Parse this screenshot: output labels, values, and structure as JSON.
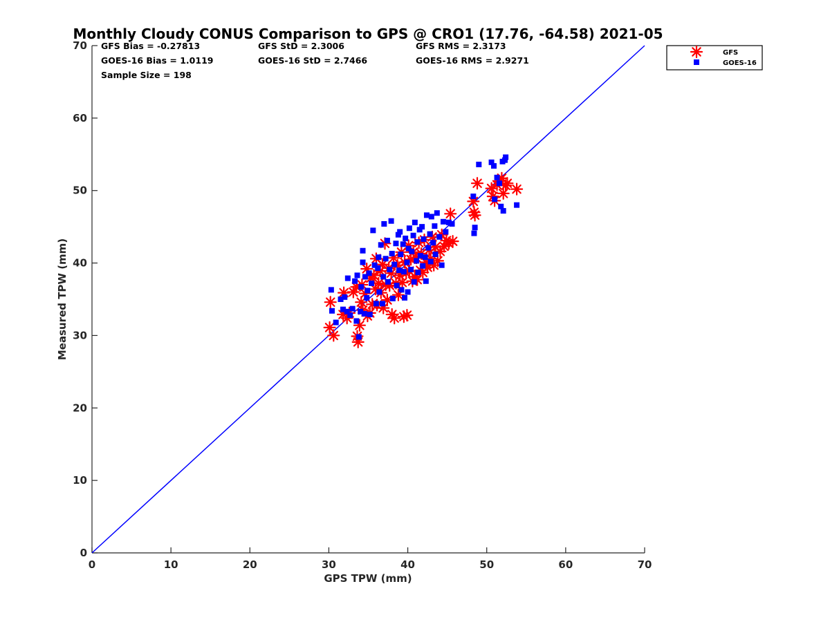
{
  "chart_data": {
    "type": "scatter",
    "title": "Monthly Cloudy CONUS Comparison to GPS @ CRO1 (17.76, -64.58) 2021-05",
    "xlabel": "GPS TPW (mm)",
    "ylabel": "Measured TPW (mm)",
    "xlim": [
      0,
      70
    ],
    "ylim": [
      0,
      70
    ],
    "xticks": [
      "0",
      "10",
      "20",
      "30",
      "40",
      "50",
      "60",
      "70"
    ],
    "yticks": [
      "0",
      "10",
      "20",
      "30",
      "40",
      "50",
      "60",
      "70"
    ],
    "grid": false,
    "legend_position": "top-right outside",
    "stats": {
      "gfs_bias": "GFS Bias = -0.27813",
      "gfs_std": "GFS StD = 2.3006",
      "gfs_rms": "GFS RMS = 2.3173",
      "goes_bias": "GOES-16 Bias = 1.0119",
      "goes_std": "GOES-16 StD = 2.7466",
      "goes_rms": "GOES-16 RMS = 2.9271",
      "sample_size": "Sample Size = 198"
    },
    "reference_line": {
      "name": "1:1",
      "x": [
        0,
        70
      ],
      "y": [
        0,
        70
      ],
      "color": "#0000ff"
    },
    "series": [
      {
        "name": "GFS",
        "marker": "asterisk",
        "color": "#ff0000",
        "points": [
          [
            30.1,
            31.1
          ],
          [
            30.2,
            34.6
          ],
          [
            30.6,
            30.0
          ],
          [
            31.8,
            32.9
          ],
          [
            31.9,
            35.9
          ],
          [
            32.3,
            32.4
          ],
          [
            32.6,
            33.1
          ],
          [
            33.1,
            36.0
          ],
          [
            33.5,
            36.7
          ],
          [
            33.6,
            29.9
          ],
          [
            33.7,
            29.1
          ],
          [
            33.9,
            31.4
          ],
          [
            34.1,
            34.6
          ],
          [
            34.2,
            37.0
          ],
          [
            34.3,
            33.5
          ],
          [
            34.6,
            35.8
          ],
          [
            34.8,
            39.2
          ],
          [
            34.9,
            32.7
          ],
          [
            35.2,
            33.1
          ],
          [
            35.3,
            37.9
          ],
          [
            35.5,
            34.3
          ],
          [
            35.7,
            38.3
          ],
          [
            35.9,
            36.4
          ],
          [
            36.0,
            40.6
          ],
          [
            36.1,
            34.2
          ],
          [
            36.3,
            37.2
          ],
          [
            36.5,
            38.9
          ],
          [
            36.6,
            35.9
          ],
          [
            36.8,
            39.8
          ],
          [
            36.9,
            33.8
          ],
          [
            37.1,
            42.7
          ],
          [
            37.2,
            37.0
          ],
          [
            37.4,
            34.9
          ],
          [
            37.6,
            39.3
          ],
          [
            37.7,
            36.9
          ],
          [
            37.9,
            38.6
          ],
          [
            38.0,
            32.9
          ],
          [
            38.2,
            40.7
          ],
          [
            38.3,
            32.4
          ],
          [
            38.5,
            37.2
          ],
          [
            38.7,
            39.7
          ],
          [
            38.8,
            35.6
          ],
          [
            39.0,
            38.3
          ],
          [
            39.2,
            41.5
          ],
          [
            39.3,
            37.3
          ],
          [
            39.5,
            32.6
          ],
          [
            39.6,
            40.1
          ],
          [
            39.8,
            38.6
          ],
          [
            39.9,
            32.8
          ],
          [
            40.1,
            42.4
          ],
          [
            40.2,
            38.9
          ],
          [
            40.4,
            40.5
          ],
          [
            40.6,
            37.5
          ],
          [
            40.7,
            41.5
          ],
          [
            40.9,
            38.1
          ],
          [
            41.1,
            40.7
          ],
          [
            41.2,
            37.7
          ],
          [
            41.4,
            42.8
          ],
          [
            41.6,
            39.0
          ],
          [
            41.7,
            41.3
          ],
          [
            41.9,
            38.7
          ],
          [
            42.1,
            43.2
          ],
          [
            42.3,
            40.1
          ],
          [
            42.5,
            39.4
          ],
          [
            42.7,
            41.8
          ],
          [
            42.9,
            40.6
          ],
          [
            43.1,
            43.6
          ],
          [
            43.3,
            39.7
          ],
          [
            43.5,
            42.2
          ],
          [
            43.8,
            40.3
          ],
          [
            44.1,
            41.6
          ],
          [
            44.3,
            43.9
          ],
          [
            44.6,
            42.3
          ],
          [
            44.9,
            43.1
          ],
          [
            45.2,
            42.7
          ],
          [
            45.4,
            46.8
          ],
          [
            45.7,
            43.0
          ],
          [
            48.3,
            48.5
          ],
          [
            48.4,
            47.0
          ],
          [
            48.5,
            46.6
          ],
          [
            48.8,
            51.0
          ],
          [
            50.6,
            50.3
          ],
          [
            50.8,
            49.2
          ],
          [
            51.0,
            48.6
          ],
          [
            51.3,
            50.8
          ],
          [
            51.6,
            51.3
          ],
          [
            51.9,
            51.7
          ],
          [
            52.1,
            49.6
          ],
          [
            52.4,
            50.7
          ],
          [
            52.6,
            51.0
          ],
          [
            53.8,
            50.2
          ]
        ]
      },
      {
        "name": "GOES-16",
        "marker": "square",
        "color": "#0000ff",
        "points": [
          [
            30.3,
            36.3
          ],
          [
            30.4,
            33.4
          ],
          [
            30.9,
            31.8
          ],
          [
            31.5,
            35.0
          ],
          [
            31.8,
            33.6
          ],
          [
            32.0,
            35.3
          ],
          [
            32.3,
            33.3
          ],
          [
            32.4,
            37.9
          ],
          [
            32.7,
            32.8
          ],
          [
            33.0,
            33.7
          ],
          [
            33.3,
            37.5
          ],
          [
            33.5,
            32.0
          ],
          [
            33.6,
            38.3
          ],
          [
            33.8,
            29.8
          ],
          [
            34.0,
            33.3
          ],
          [
            34.1,
            36.7
          ],
          [
            34.3,
            41.7
          ],
          [
            34.3,
            40.1
          ],
          [
            34.5,
            33.0
          ],
          [
            34.6,
            38.1
          ],
          [
            34.8,
            35.2
          ],
          [
            34.9,
            36.2
          ],
          [
            35.1,
            38.6
          ],
          [
            35.2,
            32.9
          ],
          [
            35.4,
            37.2
          ],
          [
            35.6,
            44.5
          ],
          [
            35.8,
            39.7
          ],
          [
            36.0,
            34.4
          ],
          [
            36.2,
            39.3
          ],
          [
            36.3,
            40.8
          ],
          [
            36.4,
            36.0
          ],
          [
            36.6,
            42.5
          ],
          [
            36.8,
            34.4
          ],
          [
            36.9,
            38.1
          ],
          [
            37.0,
            45.4
          ],
          [
            37.2,
            40.6
          ],
          [
            37.4,
            43.1
          ],
          [
            37.5,
            37.4
          ],
          [
            37.7,
            39.1
          ],
          [
            37.9,
            45.8
          ],
          [
            38.0,
            41.3
          ],
          [
            38.1,
            35.1
          ],
          [
            38.3,
            39.8
          ],
          [
            38.5,
            42.7
          ],
          [
            38.6,
            36.9
          ],
          [
            38.8,
            43.9
          ],
          [
            38.9,
            39.0
          ],
          [
            39.0,
            44.3
          ],
          [
            39.1,
            41.2
          ],
          [
            39.2,
            36.3
          ],
          [
            39.4,
            42.6
          ],
          [
            39.5,
            38.8
          ],
          [
            39.6,
            35.2
          ],
          [
            39.7,
            43.4
          ],
          [
            39.9,
            40.1
          ],
          [
            40.0,
            36.0
          ],
          [
            40.1,
            42.0
          ],
          [
            40.2,
            44.8
          ],
          [
            40.4,
            39.1
          ],
          [
            40.5,
            41.6
          ],
          [
            40.7,
            43.8
          ],
          [
            40.8,
            37.4
          ],
          [
            40.9,
            45.6
          ],
          [
            41.1,
            40.3
          ],
          [
            41.2,
            42.9
          ],
          [
            41.3,
            38.7
          ],
          [
            41.5,
            44.6
          ],
          [
            41.6,
            41.0
          ],
          [
            41.8,
            45.0
          ],
          [
            41.9,
            39.6
          ],
          [
            42.0,
            43.3
          ],
          [
            42.2,
            40.8
          ],
          [
            42.3,
            37.5
          ],
          [
            42.4,
            46.6
          ],
          [
            42.6,
            42.1
          ],
          [
            42.8,
            44.0
          ],
          [
            42.9,
            40.2
          ],
          [
            43.0,
            46.4
          ],
          [
            43.2,
            42.8
          ],
          [
            43.4,
            45.1
          ],
          [
            43.5,
            41.2
          ],
          [
            43.7,
            46.9
          ],
          [
            44.0,
            43.6
          ],
          [
            44.3,
            39.7
          ],
          [
            44.5,
            45.7
          ],
          [
            44.8,
            44.3
          ],
          [
            45.2,
            45.6
          ],
          [
            45.6,
            45.4
          ],
          [
            48.3,
            49.2
          ],
          [
            48.4,
            44.1
          ],
          [
            48.5,
            44.9
          ],
          [
            49.0,
            53.6
          ],
          [
            50.6,
            53.9
          ],
          [
            50.9,
            53.4
          ],
          [
            51.0,
            48.8
          ],
          [
            51.3,
            51.8
          ],
          [
            51.6,
            51.0
          ],
          [
            51.8,
            47.8
          ],
          [
            52.0,
            54.0
          ],
          [
            52.1,
            47.2
          ],
          [
            52.3,
            54.2
          ],
          [
            52.4,
            54.6
          ],
          [
            53.8,
            48.0
          ]
        ]
      }
    ]
  }
}
